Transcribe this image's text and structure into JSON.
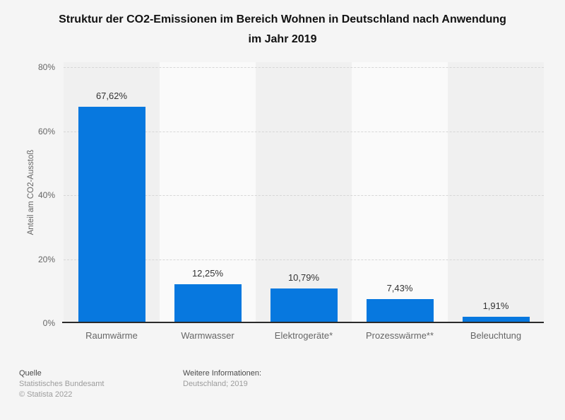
{
  "title": {
    "line1": "Struktur der CO2-Emissionen im Bereich Wohnen in Deutschland nach Anwendung",
    "line2": "im Jahr 2019"
  },
  "chart_data": {
    "type": "bar",
    "title": "Struktur der CO2-Emissionen im Bereich Wohnen in Deutschland nach Anwendung im Jahr 2019",
    "categories": [
      "Raumwärme",
      "Warmwasser",
      "Elektrogeräte*",
      "Prozesswärme**",
      "Beleuchtung"
    ],
    "values": [
      67.62,
      12.25,
      10.79,
      7.43,
      1.91
    ],
    "value_labels": [
      "67,62%",
      "12,25%",
      "10,79%",
      "7,43%",
      "1,91%"
    ],
    "xlabel": "",
    "ylabel": "Anteil am CO2-Ausstoß",
    "ylim": [
      0,
      80
    ],
    "yticks": [
      {
        "value": 80,
        "label": "80%"
      },
      {
        "value": 60,
        "label": "60%"
      },
      {
        "value": 40,
        "label": "40%"
      },
      {
        "value": 20,
        "label": "20%"
      },
      {
        "value": 0,
        "label": "0%"
      }
    ],
    "grid": "dashed horizontal",
    "legend": "none"
  },
  "colors": {
    "bar": "#0778df",
    "band_dark": "#f0f0f0",
    "band_light": "#fafafa",
    "page_background": "#f5f5f5",
    "axis_line": "#2b2b2b"
  },
  "footer": {
    "source_label": "Quelle",
    "source_name": "Statistisches Bundesamt",
    "copyright": "© Statista 2022",
    "info_label": "Weitere Informationen:",
    "info_value": "Deutschland; 2019"
  }
}
